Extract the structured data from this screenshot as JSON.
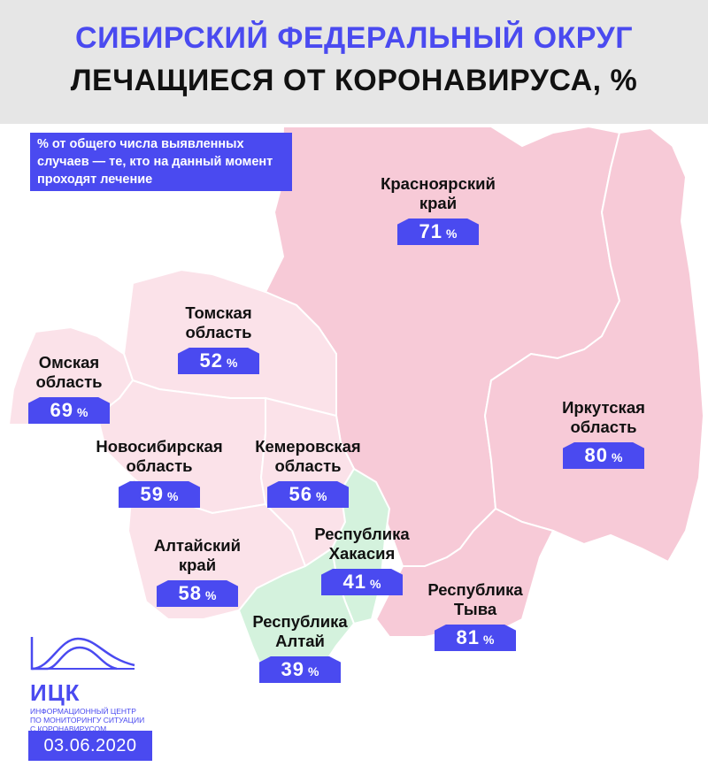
{
  "header": {
    "title": "СИБИРСКИЙ ФЕДЕРАЛЬНЫЙ ОКРУГ",
    "subtitle": "ЛЕЧАЩИЕСЯ ОТ КОРОНАВИРУСА, %"
  },
  "note": "% от общего числа выявленных случаев — те, кто на данный момент проходят лечение",
  "colors": {
    "accent": "#4a4af0",
    "high": "#f7cad7",
    "medium": "#fbe2e9",
    "low": "#d4f2dd",
    "border": "#ffffff"
  },
  "percent_sign": "%",
  "regions": [
    {
      "id": "krasnoyarsk",
      "name_lines": [
        "Красноярский",
        "край"
      ],
      "value": 71
    },
    {
      "id": "tomsk",
      "name_lines": [
        "Томская",
        "область"
      ],
      "value": 52
    },
    {
      "id": "omsk",
      "name_lines": [
        "Омская",
        "область"
      ],
      "value": 69
    },
    {
      "id": "novosibirsk",
      "name_lines": [
        "Новосибирская",
        "область"
      ],
      "value": 59
    },
    {
      "id": "kemerovo",
      "name_lines": [
        "Кемеровская",
        "область"
      ],
      "value": 56
    },
    {
      "id": "irkutsk",
      "name_lines": [
        "Иркутская",
        "область"
      ],
      "value": 80
    },
    {
      "id": "altai-krai",
      "name_lines": [
        "Алтайский",
        "край"
      ],
      "value": 58
    },
    {
      "id": "khakassia",
      "name_lines": [
        "Республика",
        "Хакасия"
      ],
      "value": 41
    },
    {
      "id": "tyva",
      "name_lines": [
        "Республика",
        "Тыва"
      ],
      "value": 81
    },
    {
      "id": "altai-rep",
      "name_lines": [
        "Республика",
        "Алтай"
      ],
      "value": 39
    }
  ],
  "logo": {
    "name": "ИЦК",
    "subtitle_lines": [
      "ИНФОРМАЦИОННЫЙ ЦЕНТР",
      "ПО МОНИТОРИНГУ СИТУАЦИИ",
      "С КОРОНАВИРУСОМ"
    ]
  },
  "date": "03.06.2020"
}
